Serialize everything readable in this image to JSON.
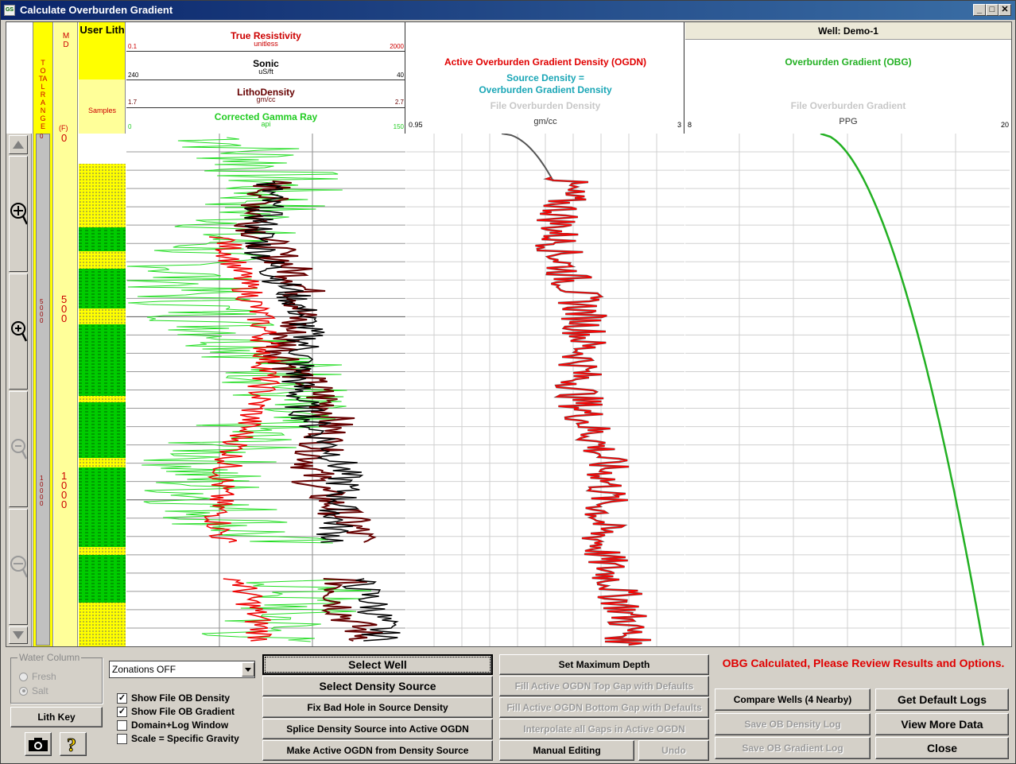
{
  "window": {
    "title": "Calculate  Overburden  Gradient",
    "app_icon": "GS",
    "controls": [
      "_",
      "□",
      "✕"
    ]
  },
  "plot": {
    "col_total_range": "TOTAL RANGE",
    "col_md": "MD",
    "md_unit": "(F)",
    "user_lith_title": "User Lith",
    "samples_label": "Samples",
    "well_label": "Well: Demo-1",
    "tracks": {
      "resistivity": {
        "name": "True Resistivity",
        "unit": "unitless",
        "min": "0.1",
        "max": "2000",
        "color": "#cc0000"
      },
      "sonic": {
        "name": "Sonic",
        "unit": "uS/ft",
        "min": "240",
        "max": "40",
        "color": "#000000"
      },
      "litho": {
        "name": "LithoDensity",
        "unit": "gm/cc",
        "min": "1.7",
        "max": "2.7",
        "color": "#660000"
      },
      "gamma": {
        "name": "Corrected Gamma Ray",
        "unit": "api",
        "min": "0",
        "max": "150",
        "color": "#22cc22"
      }
    },
    "density_track": {
      "active": "Active Overburden Gradient Density (OGDN)",
      "source_line1": "Source Density =",
      "source_line2": "Overburden Gradient Density",
      "file": "File Overburden Density",
      "unit": "gm/cc",
      "min": "0.95",
      "max": "3"
    },
    "gradient_track": {
      "active": "Overburden Gradient (OBG)",
      "file": "File Overburden Gradient",
      "unit": "PPG",
      "min": "8",
      "max": "20"
    },
    "md_ticks": [
      "0",
      "500",
      "1000"
    ],
    "range_ticks": [
      "0",
      "5000",
      "10000"
    ]
  },
  "controls": {
    "water_column": {
      "title": "Water Column",
      "fresh": "Fresh",
      "salt": "Salt"
    },
    "lith_key": "Lith Key",
    "camera_icon": "camera-icon",
    "help_icon": "help-icon",
    "zonation_select": "Zonations OFF",
    "checkboxes": [
      {
        "label": "Show File OB Density",
        "checked": true
      },
      {
        "label": "Show File OB Gradient",
        "checked": true
      },
      {
        "label": "Domain+Log Window",
        "checked": false
      },
      {
        "label": "Scale = Specific Gravity",
        "checked": false
      }
    ],
    "col1": [
      "Select Well",
      "Select Density Source",
      "Fix Bad Hole in Source Density",
      "Splice Density Source into Active OGDN",
      "Make Active OGDN from Density Source"
    ],
    "col2": [
      "Set Maximum Depth",
      "Fill Active OGDN Top Gap with Defaults",
      "Fill Active OGDN Bottom Gap with Defaults",
      "Interpolate all Gaps in Active OGDN",
      "Manual Editing",
      "Undo"
    ],
    "status": "OBG Calculated, Please Review Results and Options.",
    "col3": [
      "Compare Wells (4 Nearby)",
      "Save OB Density Log",
      "Save OB Gradient Log"
    ],
    "col4": [
      "Get Default Logs",
      "View More Data",
      "Close"
    ]
  }
}
